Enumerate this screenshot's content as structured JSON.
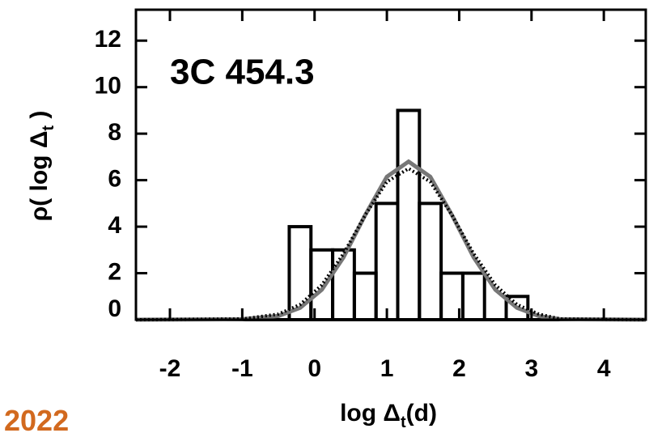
{
  "chart_data": {
    "type": "histogram",
    "title": "3C 454.3",
    "xlabel": {
      "main": "log Δ",
      "sub": "t",
      "end": "(d)"
    },
    "ylabel": {
      "main": "ρ( log Δ",
      "sub": "t",
      "end": " )"
    },
    "annotation": "2022",
    "bins": [
      -0.35,
      -0.05,
      0.25,
      0.55,
      0.85,
      1.15,
      1.45,
      1.75,
      2.05,
      2.35,
      2.65,
      2.95
    ],
    "counts": [
      4,
      3,
      3,
      2,
      5,
      9,
      5,
      2,
      2,
      0,
      1
    ],
    "color": "#000000",
    "curves": [
      {
        "color": "#777777",
        "style": "solid",
        "x": [
          -2.47,
          -1,
          -0.5,
          -0.2,
          0.1,
          0.4,
          0.7,
          1.0,
          1.3,
          1.6,
          1.9,
          2.2,
          2.5,
          2.8,
          3.1,
          3.4,
          4.58
        ],
        "values": [
          0,
          0.02,
          0.16,
          0.51,
          1.29,
          2.68,
          4.5,
          6.15,
          6.8,
          6.15,
          4.5,
          2.68,
          1.29,
          0.51,
          0.16,
          0.02,
          0
        ]
      },
      {
        "color": "#000000",
        "style": "dotted",
        "x": [
          -2.47,
          -1,
          -0.5,
          -0.2,
          0.1,
          0.4,
          0.7,
          1.0,
          1.3,
          1.6,
          1.9,
          2.2,
          2.5,
          2.8,
          3.1,
          3.4,
          4.58
        ],
        "values": [
          0,
          0.03,
          0.24,
          0.65,
          1.49,
          2.84,
          4.5,
          5.93,
          6.5,
          5.93,
          4.5,
          2.84,
          1.49,
          0.65,
          0.24,
          0.03,
          0
        ]
      }
    ],
    "xlim": [
      -2.47,
      4.58
    ],
    "ylim": [
      0,
      13.33
    ],
    "xticks": [
      -2,
      -1,
      0,
      1,
      2,
      3,
      4
    ],
    "yticks": [
      0,
      2,
      4,
      6,
      8,
      10,
      12
    ]
  }
}
